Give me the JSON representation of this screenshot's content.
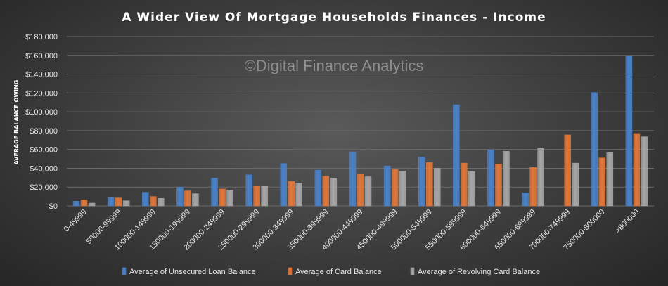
{
  "chart_data": {
    "type": "bar",
    "title": "A Wider View Of Mortgage Households Finances - Income",
    "watermark": "©Digital Finance Analytics",
    "ylabel": "AVERAGE BALANCE OWING",
    "xlabel": "",
    "ylim": [
      0,
      180000
    ],
    "yticks": [
      0,
      20000,
      40000,
      60000,
      80000,
      100000,
      120000,
      140000,
      160000,
      180000
    ],
    "ytick_labels": [
      "$0",
      "$20,000",
      "$40,000",
      "$60,000",
      "$80,000",
      "$100,000",
      "$120,000",
      "$140,000",
      "$160,000",
      "$180,000"
    ],
    "grid": true,
    "legend_position": "bottom",
    "categories": [
      "0-49999",
      "50000-99999",
      "100000-149999",
      "150000-199999",
      "200000-249999",
      "250000-299999",
      "300000-349999",
      "350000-399999",
      "400000-449999",
      "450000-499999",
      "500000-549999",
      "550000-599999",
      "600000-649999",
      "650000-699999",
      "700000-749999",
      "750000-800000",
      ">800000"
    ],
    "series": [
      {
        "name": "Average of Unsecured Loan Balance",
        "color": "#4a82c9",
        "values": [
          5000,
          9000,
          14500,
          20000,
          29500,
          33000,
          45000,
          38000,
          57500,
          42500,
          52000,
          107500,
          59500,
          14000,
          0,
          120500,
          159000
        ]
      },
      {
        "name": "Average of Card Balance",
        "color": "#e2773a",
        "values": [
          6500,
          8500,
          10000,
          16000,
          18000,
          21500,
          26000,
          31500,
          33500,
          39000,
          46000,
          45500,
          44500,
          41000,
          75500,
          51000,
          77000
        ]
      },
      {
        "name": "Average of Revolving Card Balance",
        "color": "#a7a7a7",
        "values": [
          3000,
          5500,
          8000,
          13000,
          17000,
          21500,
          24000,
          29500,
          31000,
          37000,
          40000,
          36500,
          58000,
          61000,
          45500,
          56500,
          73500
        ]
      }
    ]
  }
}
